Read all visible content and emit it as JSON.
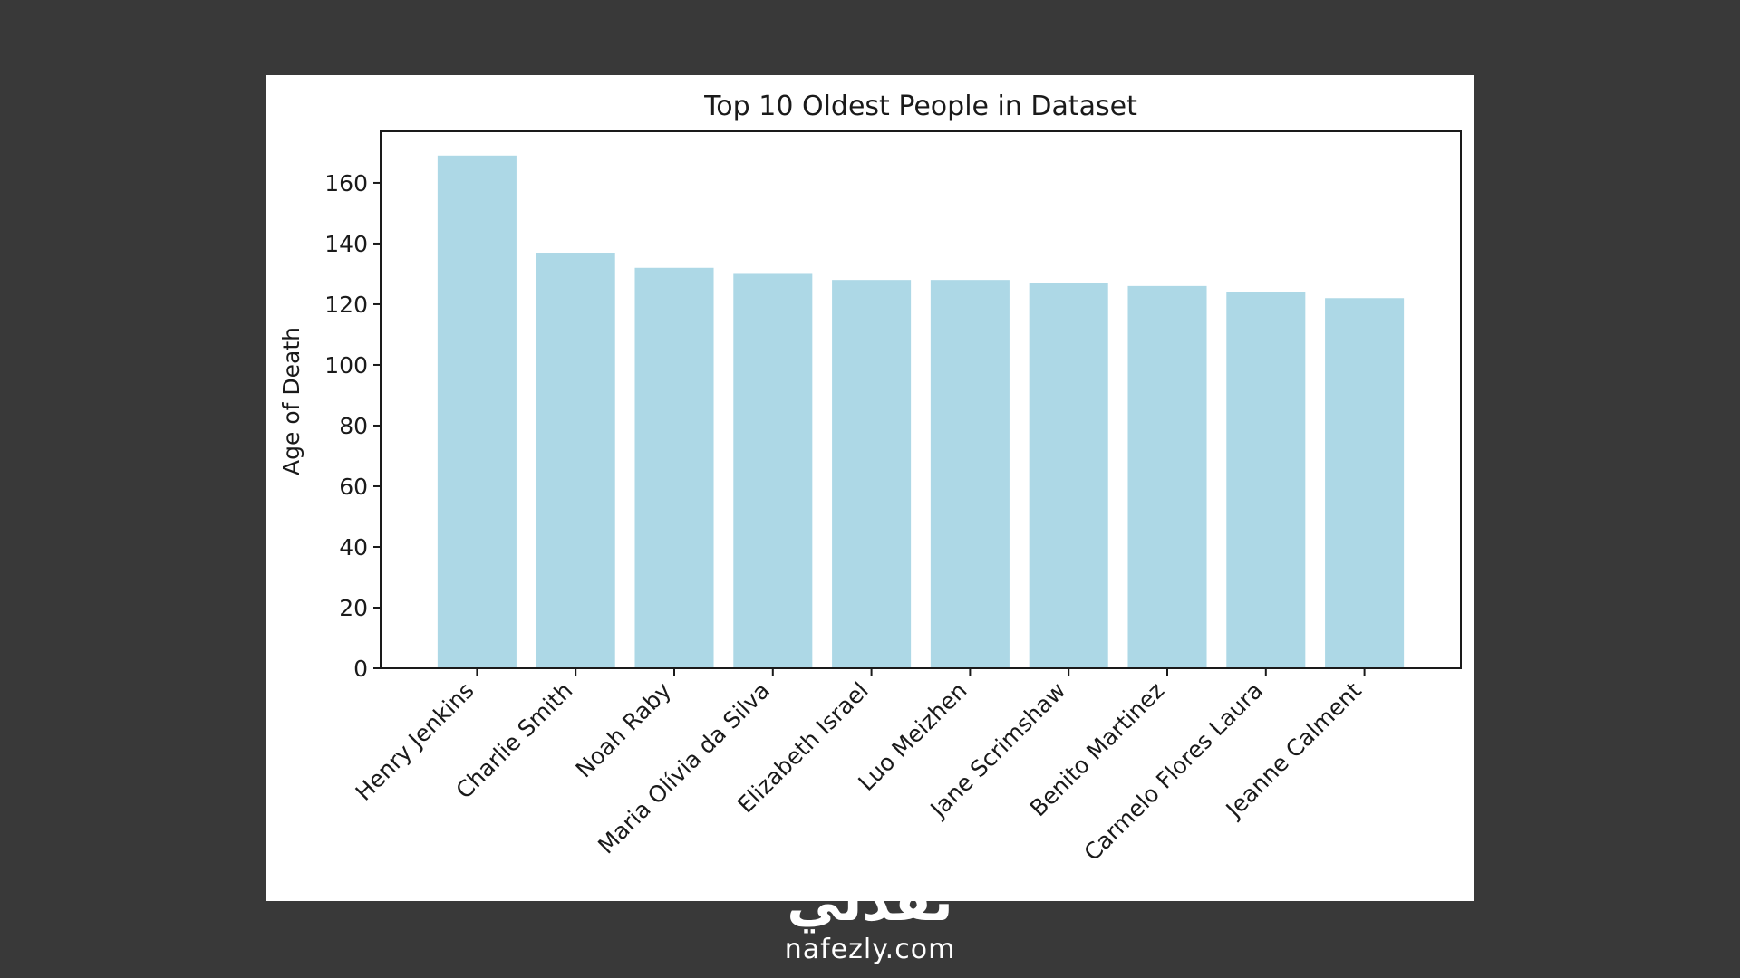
{
  "chart_data": {
    "type": "bar",
    "title": "Top 10 Oldest People in Dataset",
    "xlabel": "",
    "ylabel": "Age of Death",
    "categories": [
      "Henry Jenkins",
      "Charlie Smith",
      "Noah Raby",
      "Maria Olívia da Silva",
      "Elizabeth Israel",
      "Luo Meizhen",
      "Jane Scrimshaw",
      "Benito Martinez",
      "Carmelo Flores Laura",
      "Jeanne Calment"
    ],
    "values": [
      169,
      137,
      132,
      130,
      128,
      128,
      127,
      126,
      124,
      122
    ],
    "ylim": [
      0,
      177
    ],
    "yticks": [
      0,
      20,
      40,
      60,
      80,
      100,
      120,
      140,
      160
    ],
    "grid": false,
    "bar_color": "#add8e6"
  },
  "watermark": {
    "logo_text": "نفذلي",
    "url": "nafezly.com"
  }
}
